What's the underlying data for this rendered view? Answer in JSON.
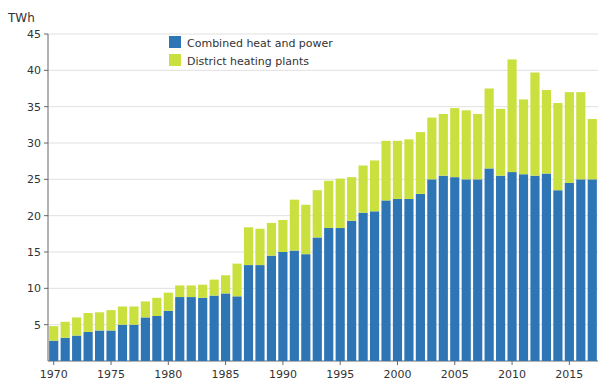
{
  "chart_data": {
    "type": "bar",
    "stacked": true,
    "y_label": "TWh",
    "categories": [
      "1970",
      null,
      null,
      null,
      null,
      "1975",
      null,
      null,
      null,
      null,
      "1980",
      null,
      null,
      null,
      null,
      "1985",
      null,
      null,
      null,
      null,
      "1990",
      null,
      null,
      null,
      null,
      "1995",
      null,
      null,
      null,
      null,
      "2000",
      null,
      null,
      null,
      null,
      "2005",
      null,
      null,
      null,
      null,
      "2010",
      null,
      null,
      null,
      null,
      "2015",
      null,
      null
    ],
    "series": [
      {
        "name": "Combined heat and power",
        "color": "#2E75B6",
        "values": [
          2.8,
          3.2,
          3.5,
          4.0,
          4.2,
          4.2,
          5.0,
          5.0,
          6.0,
          6.2,
          6.9,
          8.8,
          8.8,
          8.7,
          9.0,
          9.3,
          8.9,
          13.2,
          13.2,
          14.5,
          15.0,
          15.2,
          14.7,
          17.0,
          18.3,
          18.3,
          19.3,
          20.4,
          20.6,
          22.1,
          22.3,
          22.3,
          23.0,
          25.0,
          25.5,
          25.3,
          25.0,
          25.0,
          26.5,
          25.5,
          26.0,
          25.7,
          25.5,
          25.8,
          23.5,
          24.5,
          25.0,
          25.0
        ]
      },
      {
        "name": "District heating plants",
        "color": "#C9E03F",
        "values": [
          2.0,
          2.2,
          2.5,
          2.6,
          2.5,
          2.8,
          2.5,
          2.5,
          2.2,
          2.5,
          2.5,
          1.6,
          1.6,
          1.8,
          2.2,
          2.5,
          4.5,
          5.2,
          5.0,
          4.5,
          4.4,
          7.0,
          6.8,
          6.5,
          6.5,
          6.8,
          6.0,
          6.5,
          7.0,
          8.2,
          8.0,
          8.2,
          8.5,
          8.5,
          8.5,
          9.5,
          9.5,
          9.0,
          11.0,
          9.2,
          15.5,
          10.3,
          14.2,
          11.5,
          12.0,
          12.5,
          12.0,
          8.3
        ]
      }
    ],
    "ylim": [
      0,
      45
    ],
    "yticks": [
      5,
      10,
      15,
      20,
      25,
      30,
      35,
      40,
      45
    ],
    "grid": true,
    "legend": "upper left"
  }
}
